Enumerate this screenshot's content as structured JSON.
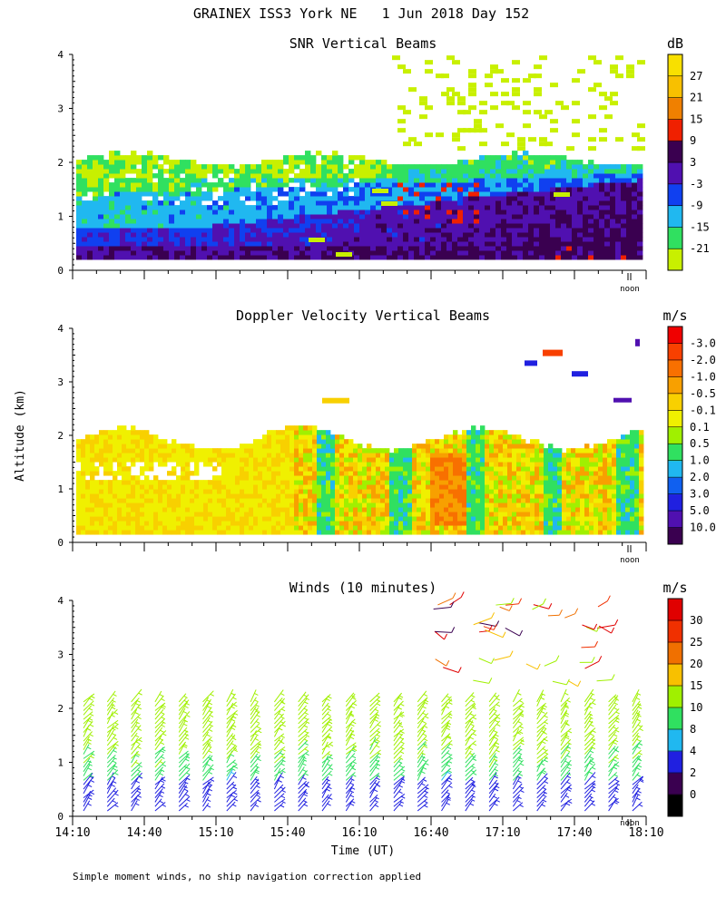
{
  "figure": {
    "title": "GRAINEX ISS3 York NE   1 Jun 2018 Day 152",
    "ylabel": "Altitude (km)",
    "xlabel": "Time (UT)",
    "noon_label": "noon",
    "footnote": "Simple moment winds, no ship navigation correction applied"
  },
  "chart_data": [
    {
      "type": "heatmap",
      "title": "SNR Vertical Beams",
      "xlabel": "Time (UT)",
      "ylabel": "Altitude (km)",
      "xlim": [
        "14:10",
        "18:10"
      ],
      "ylim": [
        0,
        4
      ],
      "yticks": [
        "0",
        "1",
        "2",
        "3",
        "4"
      ],
      "colorbar": {
        "unit": "dB",
        "levels": [
          "-21",
          "-15",
          "-9",
          "-3",
          "3",
          "9",
          "15",
          "21",
          "27"
        ],
        "colors": [
          "#c8f000",
          "#30e060",
          "#20b8f0",
          "#1040f0",
          "#5010b0",
          "#3a0050",
          "#f02000",
          "#f08000",
          "#f8c000",
          "#f8e000"
        ]
      },
      "noon_marker": "noon",
      "layers": [
        {
          "altitude_km": [
            0.2,
            0.5
          ],
          "value_db": 6
        },
        {
          "altitude_km": [
            0.5,
            1.0
          ],
          "value_db": -6
        },
        {
          "altitude_km": [
            1.0,
            1.6
          ],
          "value_db": -14
        },
        {
          "altitude_km": [
            1.6,
            2.1
          ],
          "value_db": -20
        }
      ]
    },
    {
      "type": "heatmap",
      "title": "Doppler Velocity Vertical Beams",
      "xlabel": "Time (UT)",
      "ylabel": "Altitude (km)",
      "xlim": [
        "14:10",
        "18:10"
      ],
      "ylim": [
        0,
        4
      ],
      "yticks": [
        "0",
        "1",
        "2",
        "3",
        "4"
      ],
      "colorbar": {
        "unit": "m/s",
        "levels": [
          "10.0",
          "5.0",
          "3.0",
          "2.0",
          "1.0",
          "0.5",
          "0.1",
          "-0.1",
          "-0.5",
          "-1.0",
          "-2.0",
          "-3.0"
        ],
        "colors": [
          "#3a0050",
          "#5010b0",
          "#2020e0",
          "#1060f0",
          "#20b8f0",
          "#30e060",
          "#a0f000",
          "#f0f000",
          "#f8d000",
          "#f8a000",
          "#f87000",
          "#f84000",
          "#f00000"
        ]
      },
      "noon_marker": "noon",
      "dominant_range_m_s": [
        -1.0,
        0.5
      ]
    },
    {
      "type": "scatter",
      "title": "Winds (10 minutes)",
      "xlabel": "Time (UT)",
      "ylabel": "Altitude (km)",
      "x": [
        "14:10",
        "14:40",
        "15:10",
        "15:40",
        "16:10",
        "16:40",
        "17:10",
        "17:40",
        "18:10"
      ],
      "xlim": [
        "14:10",
        "18:10"
      ],
      "ylim": [
        0,
        4
      ],
      "yticks": [
        "0",
        "1",
        "2",
        "3",
        "4"
      ],
      "colorbar": {
        "unit": "m/s",
        "levels": [
          "0",
          "2",
          "4",
          "8",
          "10",
          "15",
          "20",
          "25",
          "30"
        ],
        "colors": [
          "#000000",
          "#3a0050",
          "#2020e0",
          "#20b8f0",
          "#30e060",
          "#a0f000",
          "#f8c000",
          "#f07000",
          "#f03000",
          "#e00000"
        ]
      },
      "noon_marker": "noon",
      "profile_count": 24,
      "profile_top_km": 2.2,
      "upper_winds_km": [
        2.4,
        4.0
      ]
    }
  ]
}
